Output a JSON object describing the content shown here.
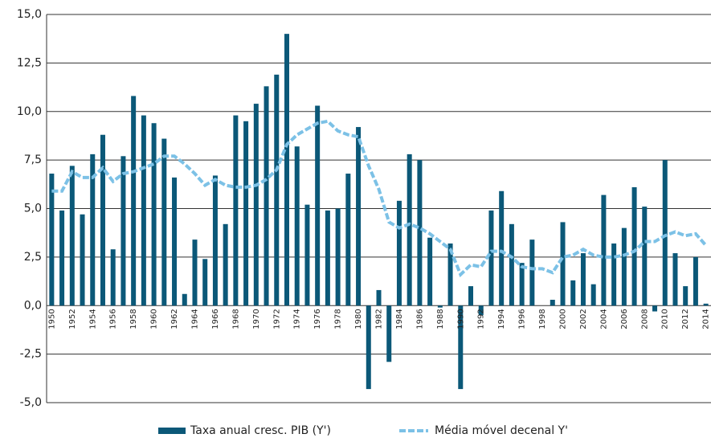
{
  "chart_data": {
    "type": "bar_line",
    "categories": [
      "1950",
      null,
      "1952",
      null,
      "1954",
      null,
      "1956",
      null,
      "1958",
      null,
      "1960",
      null,
      "1962",
      null,
      "1964",
      null,
      "1966",
      null,
      "1968",
      null,
      "1970",
      null,
      "1972",
      null,
      "1974",
      null,
      "1976",
      null,
      "1978",
      null,
      "1980",
      null,
      "1982",
      null,
      "1984",
      null,
      "1986",
      null,
      "1988",
      null,
      "1990",
      null,
      "1992",
      null,
      "1994",
      null,
      "1996",
      null,
      "1998",
      null,
      "2000",
      null,
      "2002",
      null,
      "2004",
      null,
      "2006",
      null,
      "2008",
      null,
      "2010",
      null,
      "2012",
      null,
      "2014"
    ],
    "series": [
      {
        "name": "Taxa anual cresc. PIB (Y')",
        "type": "bar",
        "color": "#0b5878",
        "values": [
          6.8,
          4.9,
          7.2,
          4.7,
          7.8,
          8.8,
          2.9,
          7.7,
          10.8,
          9.8,
          9.4,
          8.6,
          6.6,
          0.6,
          3.4,
          2.4,
          6.7,
          4.2,
          9.8,
          9.5,
          10.4,
          11.3,
          11.9,
          14.0,
          8.2,
          5.2,
          10.3,
          4.9,
          5.0,
          6.8,
          9.2,
          -4.3,
          0.8,
          -2.9,
          5.4,
          7.8,
          7.5,
          3.5,
          -0.1,
          3.2,
          -4.3,
          1.0,
          -0.5,
          4.9,
          5.9,
          4.2,
          2.2,
          3.4,
          0.0,
          0.3,
          4.3,
          1.3,
          2.7,
          1.1,
          5.7,
          3.2,
          4.0,
          6.1,
          5.1,
          -0.3,
          7.5,
          2.7,
          1.0,
          2.5,
          0.1
        ]
      },
      {
        "name": "Média móvel decenal Y'",
        "type": "line",
        "color": "#7cc1e6",
        "values": [
          5.9,
          5.9,
          6.9,
          6.6,
          6.6,
          7.1,
          6.4,
          6.8,
          6.9,
          7.1,
          7.3,
          7.7,
          7.7,
          7.3,
          6.8,
          6.2,
          6.5,
          6.2,
          6.1,
          6.1,
          6.2,
          6.5,
          7.0,
          8.3,
          8.8,
          9.1,
          9.4,
          9.5,
          9.0,
          8.8,
          8.7,
          7.2,
          6.0,
          4.3,
          4.0,
          4.2,
          4.0,
          3.7,
          3.3,
          2.9,
          1.6,
          2.1,
          2.0,
          2.8,
          2.8,
          2.5,
          2.0,
          1.9,
          1.9,
          1.7,
          2.5,
          2.6,
          2.9,
          2.6,
          2.5,
          2.5,
          2.6,
          2.8,
          3.3,
          3.3,
          3.6,
          3.8,
          3.6,
          3.7,
          3.1
        ]
      }
    ],
    "ylim": [
      -5,
      15
    ],
    "yticks": [
      {
        "value": -5,
        "label": "-5,0"
      },
      {
        "value": -2.5,
        "label": "-2,5"
      },
      {
        "value": 0,
        "label": "0,0"
      },
      {
        "value": 2.5,
        "label": "2,5"
      },
      {
        "value": 5,
        "label": "5,0"
      },
      {
        "value": 7.5,
        "label": "7,5"
      },
      {
        "value": 10,
        "label": "10,0"
      },
      {
        "value": 12.5,
        "label": "12,5"
      },
      {
        "value": 15,
        "label": "15,0"
      }
    ],
    "grid": true,
    "legend": "bottom"
  }
}
